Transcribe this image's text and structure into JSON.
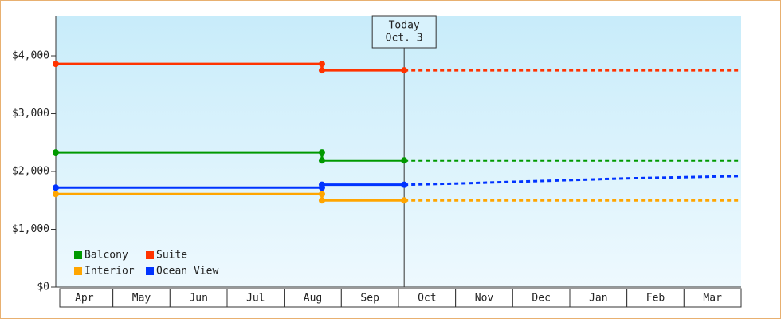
{
  "chart_data": {
    "type": "line",
    "categories": [
      "Apr",
      "May",
      "Jun",
      "Jul",
      "Aug",
      "Sep",
      "Oct",
      "Nov",
      "Dec",
      "Jan",
      "Feb",
      "Mar"
    ],
    "xlim": [
      0,
      12
    ],
    "ylim": [
      0,
      4690
    ],
    "yticks": [
      {
        "value": 0,
        "label": "$0"
      },
      {
        "value": 1000,
        "label": "$1,000"
      },
      {
        "value": 2000,
        "label": "$2,000"
      },
      {
        "value": 3000,
        "label": "$3,000"
      },
      {
        "value": 4000,
        "label": "$4,000"
      }
    ],
    "today": {
      "x": 6.1,
      "label": "Today",
      "date": "Oct. 3"
    },
    "legend": "lower left",
    "series": [
      {
        "name": "Balcony",
        "color": "#009900",
        "x": [
          0,
          4.66,
          4.66,
          6.1,
          12
        ],
        "values": [
          2330,
          2330,
          2190,
          2190,
          2190
        ]
      },
      {
        "name": "Suite",
        "color": "#ff3300",
        "x": [
          0,
          4.66,
          4.66,
          6.1,
          12
        ],
        "values": [
          3860,
          3860,
          3750,
          3750,
          3750
        ]
      },
      {
        "name": "Interior",
        "color": "#ffa500",
        "x": [
          0,
          4.66,
          4.66,
          6.1,
          12
        ],
        "values": [
          1610,
          1610,
          1500,
          1500,
          1500
        ]
      },
      {
        "name": "Ocean View",
        "color": "#0033ff",
        "x": [
          0,
          4.66,
          4.66,
          6.1,
          7,
          8,
          9,
          10,
          11,
          12
        ],
        "values": [
          1720,
          1720,
          1770,
          1770,
          1790,
          1820,
          1850,
          1880,
          1900,
          1920
        ]
      }
    ]
  }
}
